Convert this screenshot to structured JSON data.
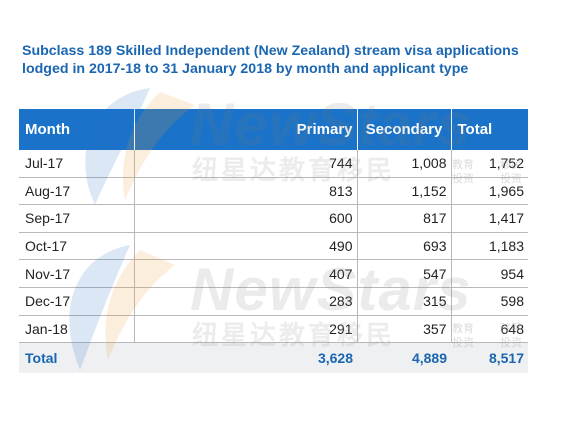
{
  "title": "Subclass 189 Skilled Independent (New Zealand) stream visa applications lodged in 2017-18 to 31 January 2018 by month and applicant type",
  "table": {
    "headers": {
      "month": "Month",
      "primary": "Primary",
      "secondary": "Secondary",
      "total": "Total"
    },
    "rows": [
      {
        "month": "Jul-17",
        "primary": "744",
        "secondary": "1,008",
        "total": "1,752"
      },
      {
        "month": "Aug-17",
        "primary": "813",
        "secondary": "1,152",
        "total": "1,965"
      },
      {
        "month": "Sep-17",
        "primary": "600",
        "secondary": "817",
        "total": "1,417"
      },
      {
        "month": "Oct-17",
        "primary": "490",
        "secondary": "693",
        "total": "1,183"
      },
      {
        "month": "Nov-17",
        "primary": "407",
        "secondary": "547",
        "total": "954"
      },
      {
        "month": "Dec-17",
        "primary": "283",
        "secondary": "315",
        "total": "598"
      },
      {
        "month": "Jan-18",
        "primary": "291",
        "secondary": "357",
        "total": "648"
      }
    ],
    "total": {
      "label": "Total",
      "primary": "3,628",
      "secondary": "4,889",
      "total": "8,517"
    }
  },
  "colors": {
    "header_bg": "#1a73c8",
    "title": "#1b66b1",
    "total_bg": "#eef0f2"
  },
  "watermark": {
    "text_en": "NewStars",
    "text_cn": "纽星达教育移民",
    "tag_1": "教育",
    "tag_2": "投资",
    "tag_3": "移民",
    "tag_4": "投资"
  }
}
